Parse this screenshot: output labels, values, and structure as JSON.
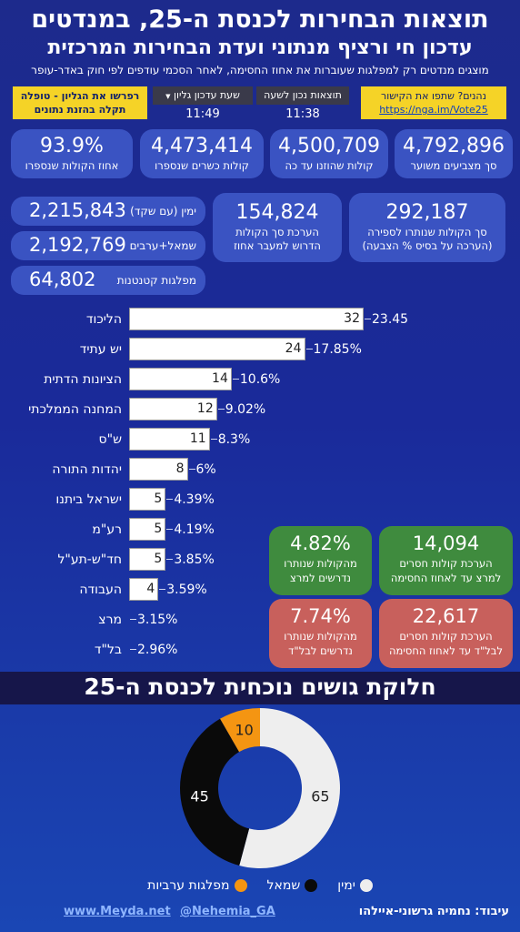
{
  "header": {
    "title": "תוצאות הבחירות לכנסת ה-25, במנדטים",
    "subtitle": "עדכון חי ורציף מנתוני ועדת הבחירות המרכזית",
    "note": "מוצגים מנדטים רק למפלגות שעוברות את אחוז החסימה, לאחר הסכמי עודפים לפי חוק באדר-עופר"
  },
  "share_box": {
    "line1": "נהנים? שתפו את הקישור",
    "link": "https://nga.im/Vote25"
  },
  "refresh_box": {
    "line1": "רפרשו את הגליון - טופלה",
    "line2": "תקלה בהזנת נתונים"
  },
  "updates": {
    "results_label": "תוצאות נכון לשעה",
    "results_time": "11:38",
    "sheet_label": "שעת עדכון גליון",
    "sheet_time": "11:49"
  },
  "stats": [
    {
      "value": "4,792,896",
      "label": "סך מצביעים משוער"
    },
    {
      "value": "4,500,709",
      "label": "קולות שהוזנו עד כה"
    },
    {
      "value": "4,473,414",
      "label": "קולות כשרים שנספרו"
    },
    {
      "value": "93.9%",
      "label": "אחוז הקולות שנספרו"
    }
  ],
  "stats2": [
    {
      "value": "292,187",
      "label1": "סך הקולות שנותרו לספירה",
      "label2": "(הערכה על בסיס % הצבעה)"
    },
    {
      "value": "154,824",
      "label1": "הערכת סך הקולות",
      "label2": "הדרוש למעבר אחוז"
    }
  ],
  "blocs_votes": [
    {
      "value": "2,215,843",
      "label": "ימין (עם שקד)"
    },
    {
      "value": "2,192,769",
      "label": "שמאל+ערבים"
    },
    {
      "value": "64,802",
      "label": "מפלגות קטנטנות"
    }
  ],
  "chart_data": [
    {
      "type": "bar",
      "orientation": "horizontal",
      "categories": [
        "הליכוד",
        "יש עתיד",
        "הציונות הדתית",
        "המחנה הממלכתי",
        "ש\"ס",
        "יהדות התורה",
        "ישראל ביתנו",
        "רע\"מ",
        "חד\"ש-תע\"ל",
        "העבודה",
        "מרצ",
        "בל\"ד"
      ],
      "values": [
        32,
        24,
        14,
        12,
        11,
        8,
        5,
        5,
        5,
        4,
        0,
        0
      ],
      "percent_labels": [
        "23.45",
        "17.85%",
        "10.6%",
        "9.02%",
        "8.3%",
        "6%",
        "4.39%",
        "4.19%",
        "3.85%",
        "3.59%",
        "3.15%",
        "2.96%"
      ],
      "xlim": [
        0,
        32
      ]
    },
    {
      "type": "pie",
      "title": "חלוקת גושים נוכחית לכנסת ה-25",
      "categories": [
        "ימין",
        "שמאל",
        "מפלגות ערביות"
      ],
      "values": [
        65,
        45,
        10
      ],
      "colors": [
        "#eeeeee",
        "#0a0a0a",
        "#f49512"
      ]
    }
  ],
  "callouts": [
    {
      "value": "14,094",
      "line1": "הערכת קולות חסרים",
      "line2": "למרצ עד לאחוז החסימה",
      "color": "green"
    },
    {
      "value": "4.82%",
      "line1": "מהקולות שנותרו",
      "line2": "נדרשים למרצ",
      "color": "green"
    },
    {
      "value": "22,617",
      "line1": "הערכת קולות חסרים",
      "line2": "לבל\"ד עד לאחוז החסימה",
      "color": "red"
    },
    {
      "value": "7.74%",
      "line1": "מהקולות שנותרו",
      "line2": "נדרשים לבל\"ד",
      "color": "red"
    }
  ],
  "footer": {
    "credit": "עיבוד: נחמיה גרשוני-איילהו",
    "handle": "@Nehemia_GA",
    "site": "www.Meyda.net"
  }
}
